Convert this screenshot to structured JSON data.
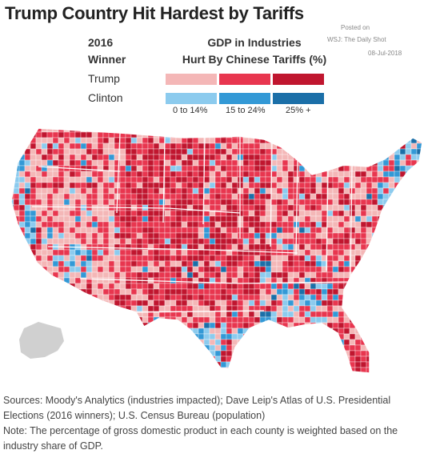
{
  "header": {
    "title": "Trump Country Hit Hardest by Tariffs",
    "posted_label": "Posted on",
    "posted_source": "WSJ: The Daily Shot",
    "posted_date": "08-Jul-2018"
  },
  "legend": {
    "winner_heading": [
      "2016",
      "Winner"
    ],
    "gdp_heading": [
      "GDP in Industries",
      "Hurt By Chinese Tariffs (%)"
    ],
    "rows": [
      {
        "label": "Trump",
        "colors": [
          "#f4b7b7",
          "#e8364f",
          "#c0162f"
        ]
      },
      {
        "label": "Clinton",
        "colors": [
          "#8ccbee",
          "#3399d6",
          "#1b6fa8"
        ]
      }
    ],
    "bins": [
      "0 to 14%",
      "15 to 24%",
      "25% +"
    ]
  },
  "map": {
    "colors": {
      "trump_low": "#f4b7b7",
      "trump_mid": "#e8364f",
      "trump_high": "#c0162f",
      "clinton_low": "#8ccbee",
      "clinton_mid": "#3399d6",
      "clinton_high": "#1b6fa8",
      "alaska": "#d0d0d0"
    }
  },
  "notes": {
    "sources": "Sources: Moody's Analytics (industries impacted); Dave Leip's Atlas of U.S. Presidential Elections (2016 winners); U.S. Census Bureau (population)",
    "note": "Note: The percentage of gross domestic product in each county is weighted based on the industry share of GDP."
  }
}
